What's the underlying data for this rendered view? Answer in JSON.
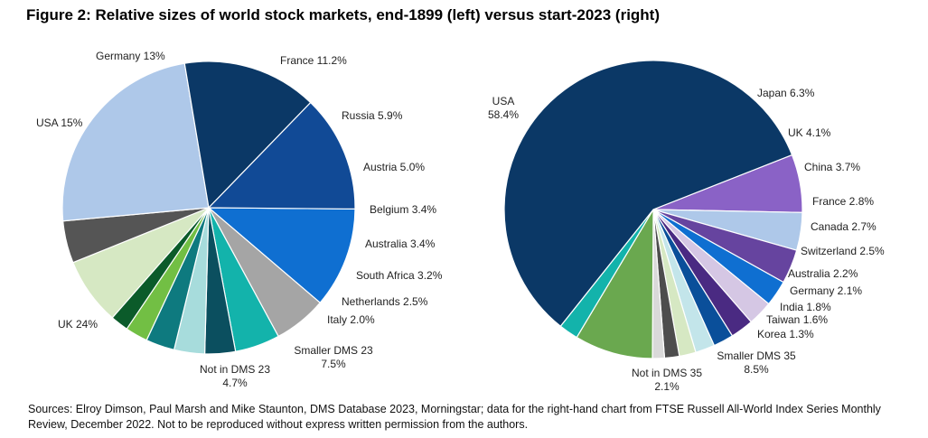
{
  "figure": {
    "title": "Figure 2: Relative sizes of world stock markets, end-1899 (left) versus start-2023 (right)",
    "source": "Sources: Elroy Dimson, Paul Marsh and Mike Staunton, DMS Database 2023, Morningstar; data for the right-hand chart from FTSE Russell All-World Index Series Monthly Review, December 2022. Not to be reproduced without express written permission from the authors."
  },
  "chart_data": [
    {
      "type": "pie",
      "title": "end-1899",
      "slices": [
        {
          "label": "France",
          "value_label": "11.2%",
          "value": 11.2,
          "color": "#0f6fd1"
        },
        {
          "label": "Russia",
          "value_label": "5.9%",
          "value": 5.9,
          "color": "#a5a5a5"
        },
        {
          "label": "Austria",
          "value_label": "5.0%",
          "value": 5.0,
          "color": "#13b3ab"
        },
        {
          "label": "Belgium",
          "value_label": "3.4%",
          "value": 3.4,
          "color": "#0b4f5f"
        },
        {
          "label": "Australia",
          "value_label": "3.4%",
          "value": 3.4,
          "color": "#a7dcdc"
        },
        {
          "label": "South Africa",
          "value_label": "3.2%",
          "value": 3.2,
          "color": "#0e7a7f"
        },
        {
          "label": "Netherlands",
          "value_label": "2.5%",
          "value": 2.5,
          "color": "#72bf44"
        },
        {
          "label": "Italy",
          "value_label": "2.0%",
          "value": 2.0,
          "color": "#0b5b2a"
        },
        {
          "label": "Smaller DMS 23",
          "value_label": "7.5%",
          "value": 7.5,
          "color": "#d6e8c3"
        },
        {
          "label": "Not in DMS 23",
          "value_label": "4.7%",
          "value": 4.7,
          "color": "#555555"
        },
        {
          "label": "UK",
          "value_label": "24%",
          "value": 24,
          "color": "#aec8e9"
        },
        {
          "label": "USA",
          "value_label": "15%",
          "value": 15,
          "color": "#0b3866"
        },
        {
          "label": "Germany",
          "value_label": "13%",
          "value": 13,
          "color": "#114a96"
        }
      ]
    },
    {
      "type": "pie",
      "title": "start-2023",
      "slices": [
        {
          "label": "Japan",
          "value_label": "6.3%",
          "value": 6.3,
          "color": "#8a62c6"
        },
        {
          "label": "UK",
          "value_label": "4.1%",
          "value": 4.1,
          "color": "#aec8e9"
        },
        {
          "label": "China",
          "value_label": "3.7%",
          "value": 3.7,
          "color": "#66449f"
        },
        {
          "label": "France",
          "value_label": "2.8%",
          "value": 2.8,
          "color": "#0f6fd1"
        },
        {
          "label": "Canada",
          "value_label": "2.7%",
          "value": 2.7,
          "color": "#d5c7e4"
        },
        {
          "label": "Switzerland",
          "value_label": "2.5%",
          "value": 2.5,
          "color": "#4a2a82"
        },
        {
          "label": "Australia",
          "value_label": "2.2%",
          "value": 2.2,
          "color": "#0a4f9a"
        },
        {
          "label": "Germany",
          "value_label": "2.1%",
          "value": 2.1,
          "color": "#c3e5ea"
        },
        {
          "label": "India",
          "value_label": "1.8%",
          "value": 1.8,
          "color": "#d6e8c3"
        },
        {
          "label": "Taiwan",
          "value_label": "1.6%",
          "value": 1.6,
          "color": "#4d4d4d"
        },
        {
          "label": "Korea",
          "value_label": "1.3%",
          "value": 1.3,
          "color": "#d9d9d9"
        },
        {
          "label": "Smaller DMS 35",
          "value_label": "8.5%",
          "value": 8.5,
          "color": "#6aa84f"
        },
        {
          "label": "Not in DMS 35",
          "value_label": "2.1%",
          "value": 2.1,
          "color": "#13b3ab"
        },
        {
          "label": "USA",
          "value_label": "58.4%",
          "value": 58.4,
          "color": "#0b3866"
        }
      ]
    }
  ]
}
